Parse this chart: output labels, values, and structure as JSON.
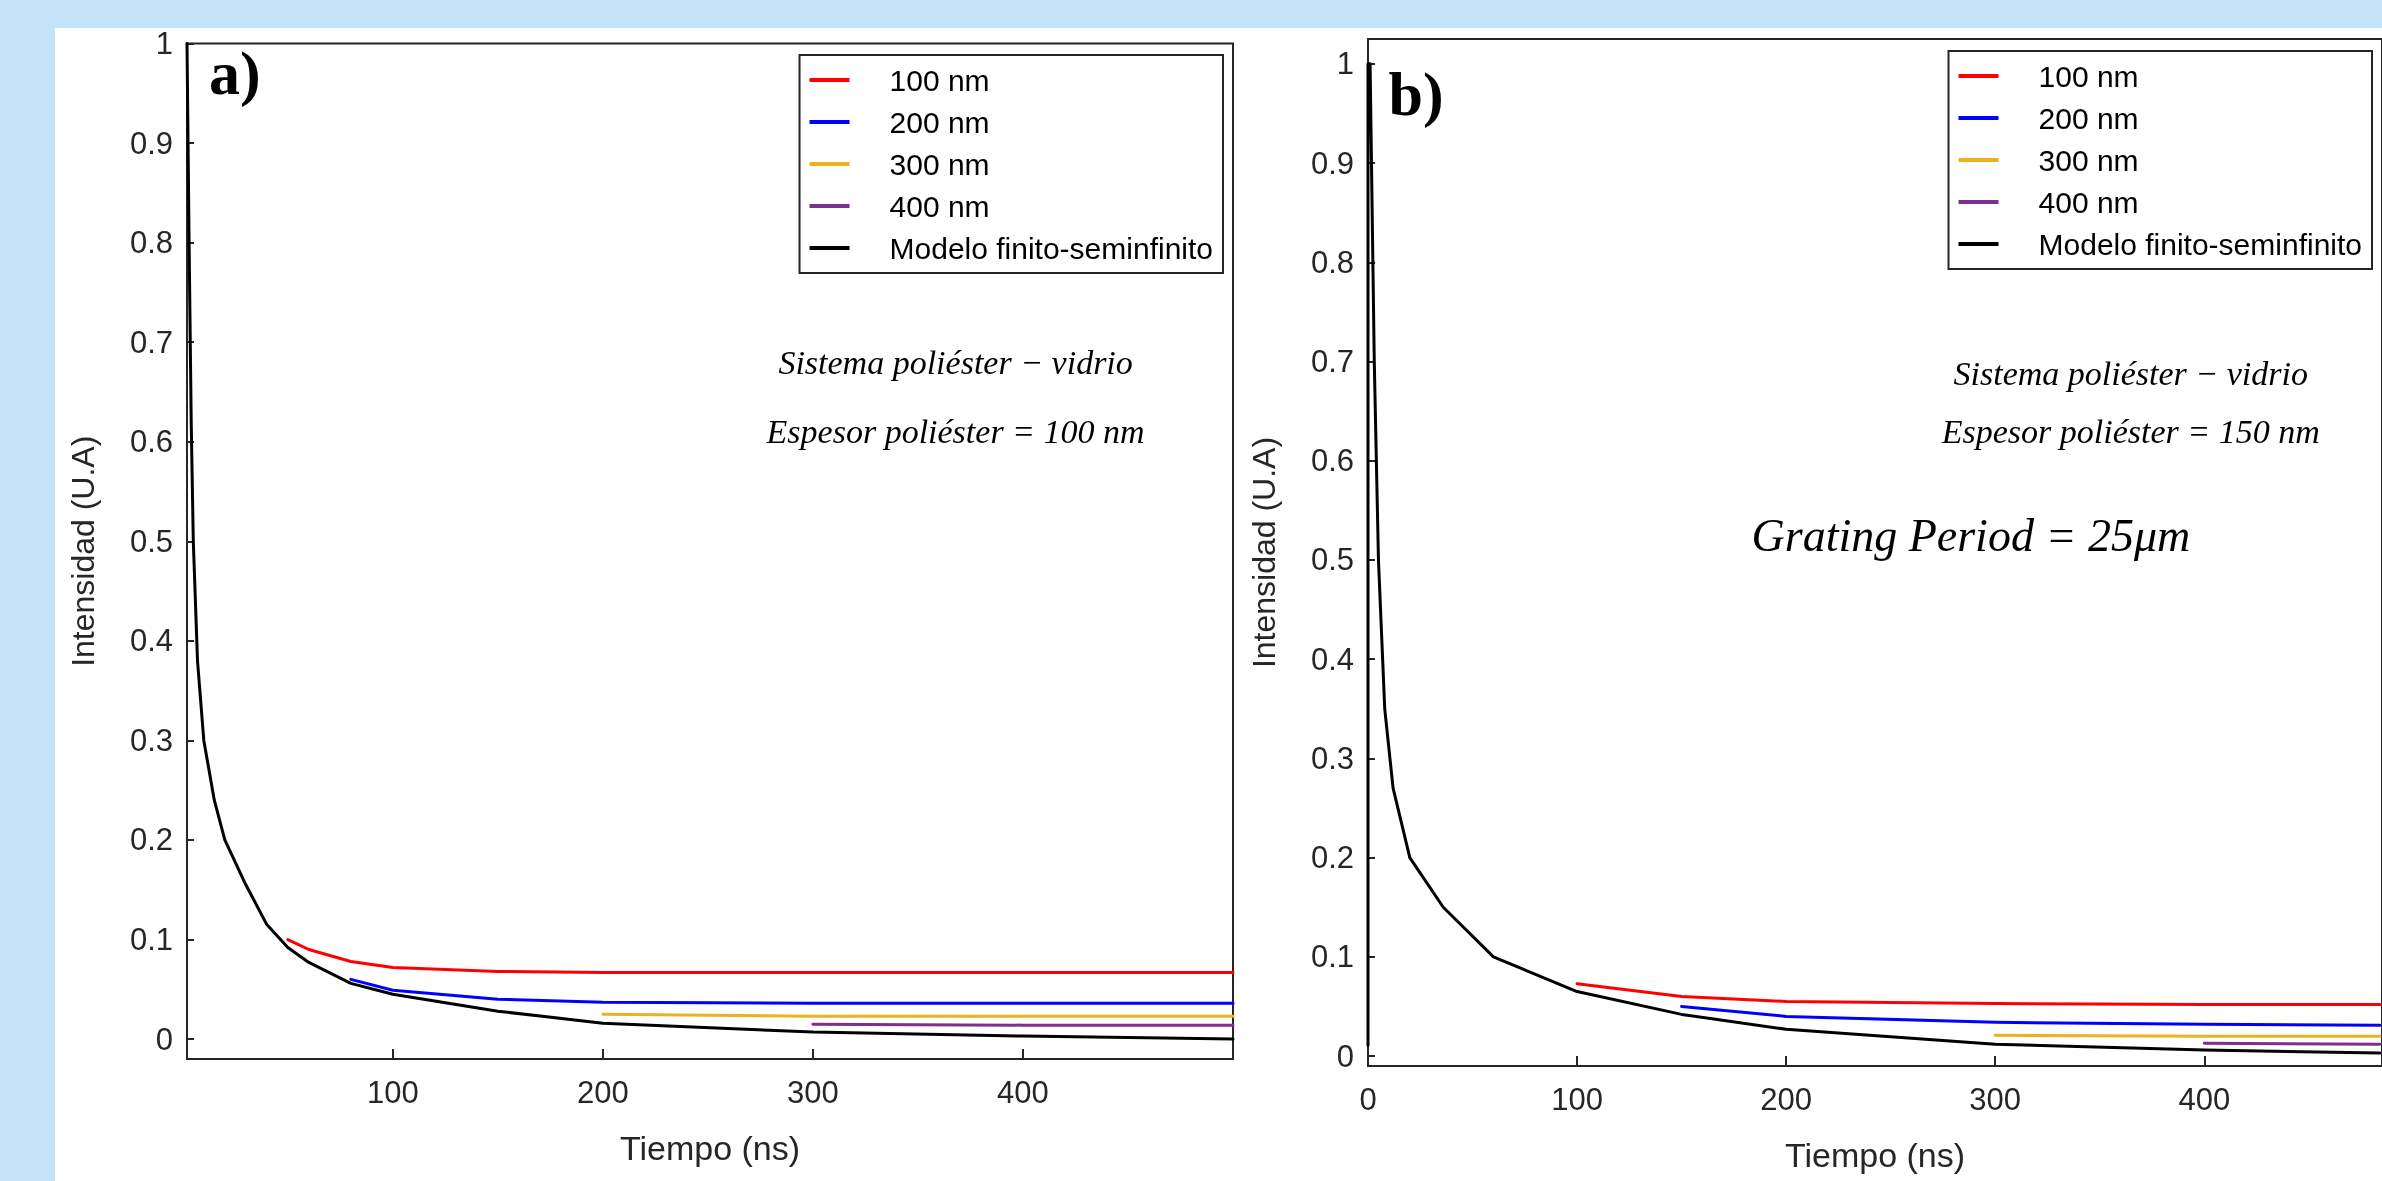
{
  "chart_data": [
    {
      "type": "line",
      "xlabel": "Tiempo (ns)",
      "ylabel": "Intensidad (U.A)",
      "x": [
        2,
        3,
        4,
        5,
        7,
        10,
        15,
        20,
        30,
        40,
        50,
        60,
        80,
        100,
        150,
        200,
        300,
        400,
        500
      ],
      "series": [
        {
          "name": "100 nm",
          "color": "#ff0000",
          "values": [
            null,
            null,
            null,
            null,
            null,
            null,
            null,
            null,
            null,
            null,
            0.1,
            0.09,
            0.078,
            0.072,
            0.068,
            0.067,
            0.067,
            0.067,
            0.067
          ]
        },
        {
          "name": "200 nm",
          "color": "#0000ff",
          "values": [
            null,
            null,
            null,
            null,
            null,
            null,
            null,
            null,
            null,
            null,
            null,
            null,
            0.06,
            0.049,
            0.04,
            0.037,
            0.036,
            0.036,
            0.036
          ]
        },
        {
          "name": "300 nm",
          "color": "#edb120",
          "values": [
            null,
            null,
            null,
            null,
            null,
            null,
            null,
            null,
            null,
            null,
            null,
            null,
            null,
            null,
            null,
            0.025,
            0.023,
            0.023,
            0.023
          ]
        },
        {
          "name": "400 nm",
          "color": "#7e2f8e",
          "values": [
            null,
            null,
            null,
            null,
            null,
            null,
            null,
            null,
            null,
            null,
            null,
            null,
            null,
            null,
            null,
            null,
            0.015,
            0.014,
            0.014
          ]
        },
        {
          "name": "Modelo finito-seminfinito",
          "color": "#000000",
          "values": [
            1,
            0.8,
            0.62,
            0.5,
            0.38,
            0.3,
            0.24,
            0.2,
            0.155,
            0.115,
            0.092,
            0.077,
            0.056,
            0.045,
            0.028,
            0.016,
            0.007,
            0.003,
            0
          ]
        }
      ],
      "xlim": [
        2,
        500
      ],
      "xticks": [
        100,
        200,
        300,
        400
      ],
      "ylim": [
        -0.02,
        1
      ],
      "yticks": [
        0,
        0.1,
        0.2,
        0.3,
        0.4,
        0.5,
        0.6,
        0.7,
        0.8,
        0.9,
        1
      ],
      "legend": "top right",
      "grid": false,
      "marker": "none",
      "line_style": "solid",
      "annotations": [
        "a)",
        "Sistema poliéster − vidrio",
        "Espesor poliéster = 100 nm"
      ]
    },
    {
      "type": "line",
      "xlabel": "Tiempo (ns)",
      "ylabel": "Intensidad (U.A)",
      "series": [
        {
          "name": "100 nm",
          "color": "#ff0000",
          "x": [
            100,
            150,
            200,
            300,
            400,
            484
          ],
          "values": [
            0.073,
            0.06,
            0.055,
            0.053,
            0.052,
            0.052
          ]
        },
        {
          "name": "200 nm",
          "color": "#0000ff",
          "x": [
            150,
            200,
            300,
            400,
            484
          ],
          "values": [
            0.05,
            0.04,
            0.034,
            0.032,
            0.031
          ]
        },
        {
          "name": "300 nm",
          "color": "#edb120",
          "x": [
            300,
            400,
            484
          ],
          "values": [
            0.021,
            0.02,
            0.02
          ]
        },
        {
          "name": "400 nm",
          "color": "#7e2f8e",
          "x": [
            400,
            484
          ],
          "values": [
            0.013,
            0.012
          ]
        },
        {
          "name": "Modelo finito-seminfinito",
          "color": "#000000",
          "x": [
            0,
            0,
            1,
            3,
            5,
            8,
            12,
            20,
            36,
            60,
            100,
            150,
            200,
            300,
            400,
            484
          ],
          "values": [
            0.011,
            1,
            1,
            0.7,
            0.5,
            0.35,
            0.27,
            0.2,
            0.15,
            0.1,
            0.065,
            0.042,
            0.027,
            0.012,
            0.006,
            0.003
          ]
        }
      ],
      "xlim": [
        0,
        485
      ],
      "xticks": [
        0,
        100,
        200,
        300,
        400
      ],
      "ylim": [
        -0.01,
        1.025
      ],
      "yticks": [
        0,
        0.1,
        0.2,
        0.3,
        0.4,
        0.5,
        0.6,
        0.7,
        0.8,
        0.9,
        1
      ],
      "legend": "top right",
      "grid": false,
      "marker": "none",
      "line_style": "solid",
      "annotations": [
        "b)",
        "Sistema poliéster − vidrio",
        "Espesor poliéster = 150 nm",
        "Grating Period = 25μm"
      ]
    }
  ]
}
